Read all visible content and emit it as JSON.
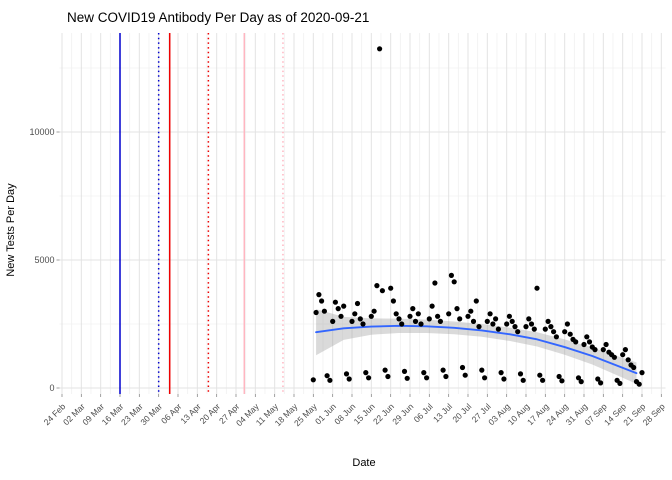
{
  "page": {
    "background": "#FFFFFF"
  },
  "chart_data": {
    "type": "scatter",
    "title": "New COVID19 Antibody Per Day as of 2020-09-21",
    "xlabel": "Date",
    "ylabel": "New Tests Per Day",
    "legend_position": "none",
    "grid": true,
    "x_tick_start_date": "2020-02-24",
    "x_tick_interval_days": 7,
    "x_tick_labels": [
      "24 Feb",
      "02 Mar",
      "09 Mar",
      "16 Mar",
      "23 Mar",
      "30 Mar",
      "06 Apr",
      "13 Apr",
      "20 Apr",
      "27 Apr",
      "04 May",
      "11 May",
      "18 May",
      "25 May",
      "01 Jun",
      "08 Jun",
      "15 Jun",
      "22 Jun",
      "29 Jun",
      "06 Jul",
      "13 Jul",
      "20 Jul",
      "27 Jul",
      "03 Aug",
      "10 Aug",
      "17 Aug",
      "24 Aug",
      "31 Aug",
      "07 Sep",
      "14 Sep",
      "21 Sep",
      "28 Sep"
    ],
    "y_ticks": [
      0,
      5000,
      10000
    ],
    "y_minor_ticks": [
      2500,
      7500,
      12500
    ],
    "ylim": [
      -240,
      13870
    ],
    "colors": {
      "point": "#000000",
      "smooth_line": "#3366FF",
      "ribbon": "#9E9E9E",
      "grid_major": "#E3E3E3",
      "grid_minor": "#F1F1F1",
      "tick_mark": "#888888",
      "tick_text": "#4D4D4D",
      "axis_title_text": "#000000",
      "title_text": "#000000",
      "event_blue": "#0000CD",
      "event_red": "#EE0000",
      "event_pink": "#FFB6C1"
    },
    "event_lines": [
      {
        "date": "2020-03-16",
        "color_key": "event_blue",
        "style": "solid"
      },
      {
        "date": "2020-03-30",
        "color_key": "event_blue",
        "style": "dotted"
      },
      {
        "date": "2020-04-03",
        "color_key": "event_red",
        "style": "solid"
      },
      {
        "date": "2020-04-17",
        "color_key": "event_red",
        "style": "dotted"
      },
      {
        "date": "2020-04-30",
        "color_key": "event_pink",
        "style": "solid"
      },
      {
        "date": "2020-05-14",
        "color_key": "event_pink",
        "style": "dotted"
      }
    ],
    "series": [
      {
        "name": "new-antibody-tests-per-day",
        "start_date": "2020-05-25",
        "frequency": "daily",
        "values": [
          320,
          2950,
          3650,
          3400,
          3000,
          480,
          300,
          2600,
          3350,
          3100,
          2800,
          3200,
          550,
          350,
          2600,
          2900,
          3300,
          2700,
          2500,
          600,
          400,
          2800,
          3000,
          4000,
          13250,
          3800,
          700,
          450,
          3900,
          3400,
          2900,
          2700,
          2500,
          650,
          380,
          2800,
          3100,
          2600,
          2900,
          2500,
          600,
          400,
          2700,
          3200,
          4100,
          2800,
          2600,
          700,
          450,
          2900,
          4400,
          4150,
          3100,
          2700,
          800,
          500,
          2800,
          3000,
          2600,
          3400,
          2400,
          700,
          400,
          2600,
          2900,
          2500,
          2700,
          2300,
          600,
          350,
          2500,
          2800,
          2600,
          2400,
          2200,
          550,
          300,
          2400,
          2700,
          2500,
          2300,
          3900,
          500,
          300,
          2300,
          2600,
          2400,
          2200,
          2000,
          450,
          280,
          2200,
          2500,
          2100,
          1900,
          1800,
          400,
          250,
          1700,
          2000,
          1800,
          1600,
          1500,
          350,
          200,
          1500,
          1700,
          1400,
          1300,
          1200,
          300,
          180,
          1300,
          1500,
          1100,
          900,
          800,
          250,
          150,
          600
        ]
      }
    ],
    "smooth": {
      "dates": [
        "2020-05-26",
        "2020-06-05",
        "2020-06-15",
        "2020-06-25",
        "2020-07-05",
        "2020-07-15",
        "2020-07-25",
        "2020-08-04",
        "2020-08-14",
        "2020-08-24",
        "2020-09-03",
        "2020-09-13",
        "2020-09-19"
      ],
      "values": [
        2180,
        2330,
        2400,
        2430,
        2410,
        2350,
        2250,
        2100,
        1900,
        1600,
        1250,
        830,
        580
      ],
      "half_widths": [
        900,
        450,
        320,
        280,
        260,
        250,
        250,
        260,
        280,
        300,
        330,
        380,
        420
      ]
    }
  }
}
